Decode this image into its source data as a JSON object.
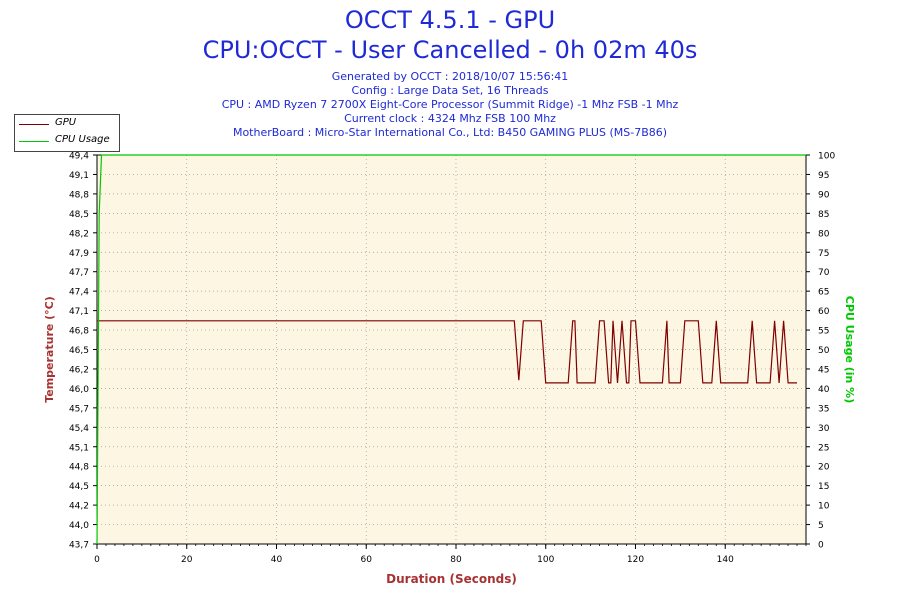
{
  "header": {
    "title": "OCCT 4.5.1 - GPU",
    "subtitle": "CPU:OCCT - User Cancelled - 0h 02m 40s",
    "generated": "Generated by OCCT : 2018/10/07 15:56:41",
    "config": "Config : Large Data Set, 16 Threads",
    "cpu": "CPU : AMD Ryzen 7 2700X Eight-Core Processor (Summit Ridge) -1 Mhz FSB -1 Mhz",
    "clock": "Current clock : 4324 Mhz FSB 100 Mhz",
    "motherboard": "MotherBoard : Micro-Star International Co., Ltd: B450 GAMING PLUS (MS-7B86)"
  },
  "legend": {
    "items": [
      {
        "label": "GPU",
        "color": "#800000"
      },
      {
        "label": "CPU Usage",
        "color": "#00c800"
      }
    ]
  },
  "colors": {
    "plot_bg": "#fdf6e3",
    "grid": "#9a9a9a",
    "gpu": "#800000",
    "cpu": "#00c800",
    "left_axis_label": "#a83232",
    "right_axis_label": "#00c800",
    "x_axis_label": "#a83232"
  },
  "chart_data": {
    "type": "line",
    "xlabel": "Duration (Seconds)",
    "ylabel": "Temperature (°C)",
    "ylabel_right": "CPU Usage (in %)",
    "xlim": [
      0,
      158
    ],
    "ylim": [
      43.7,
      49.4
    ],
    "ylim_right": [
      0,
      100
    ],
    "x_ticks": [
      0,
      20,
      40,
      60,
      80,
      100,
      120,
      140
    ],
    "y_ticks": [
      "43,7",
      "44,0",
      "44,2",
      "44,5",
      "44,8",
      "45,1",
      "45,4",
      "45,7",
      "46,0",
      "46,2",
      "46,5",
      "46,8",
      "47,1",
      "47,4",
      "47,7",
      "47,9",
      "48,2",
      "48,5",
      "48,8",
      "49,1",
      "49,4"
    ],
    "y_ticks_right": [
      0,
      5,
      10,
      15,
      20,
      25,
      30,
      35,
      40,
      45,
      50,
      55,
      60,
      65,
      70,
      75,
      80,
      85,
      90,
      95,
      100
    ],
    "grid": true,
    "legend_position": "top-left",
    "series": [
      {
        "name": "GPU",
        "x": [
          0,
          93,
          94,
          95,
          98,
          99,
          100,
          101,
          103,
          104,
          105,
          106,
          106.5,
          107,
          108,
          111,
          112,
          113,
          114,
          114.5,
          115,
          116,
          117,
          118,
          118.5,
          119,
          120,
          121,
          122,
          123,
          126,
          127,
          127.5,
          128,
          129,
          130,
          131,
          134,
          135,
          136,
          137,
          138,
          139,
          140,
          141,
          142,
          143,
          144,
          145,
          146,
          147,
          148,
          149,
          150,
          151,
          152,
          153,
          154,
          155,
          156
        ],
        "y": [
          46.97,
          46.97,
          46.1,
          46.97,
          46.97,
          46.97,
          46.06,
          46.06,
          46.06,
          46.06,
          46.06,
          46.97,
          46.97,
          46.06,
          46.06,
          46.06,
          46.97,
          46.97,
          46.06,
          46.06,
          46.97,
          46.06,
          46.97,
          46.06,
          46.06,
          46.97,
          46.97,
          46.06,
          46.06,
          46.06,
          46.06,
          46.97,
          46.06,
          46.06,
          46.06,
          46.06,
          46.97,
          46.97,
          46.06,
          46.06,
          46.06,
          46.97,
          46.06,
          46.06,
          46.06,
          46.06,
          46.06,
          46.06,
          46.06,
          46.97,
          46.06,
          46.06,
          46.06,
          46.06,
          46.97,
          46.06,
          46.97,
          46.06,
          46.06,
          46.06
        ]
      },
      {
        "name": "CPU Usage",
        "x": [
          0,
          0.5,
          1,
          158
        ],
        "y": [
          0,
          85,
          100,
          100
        ]
      }
    ]
  }
}
